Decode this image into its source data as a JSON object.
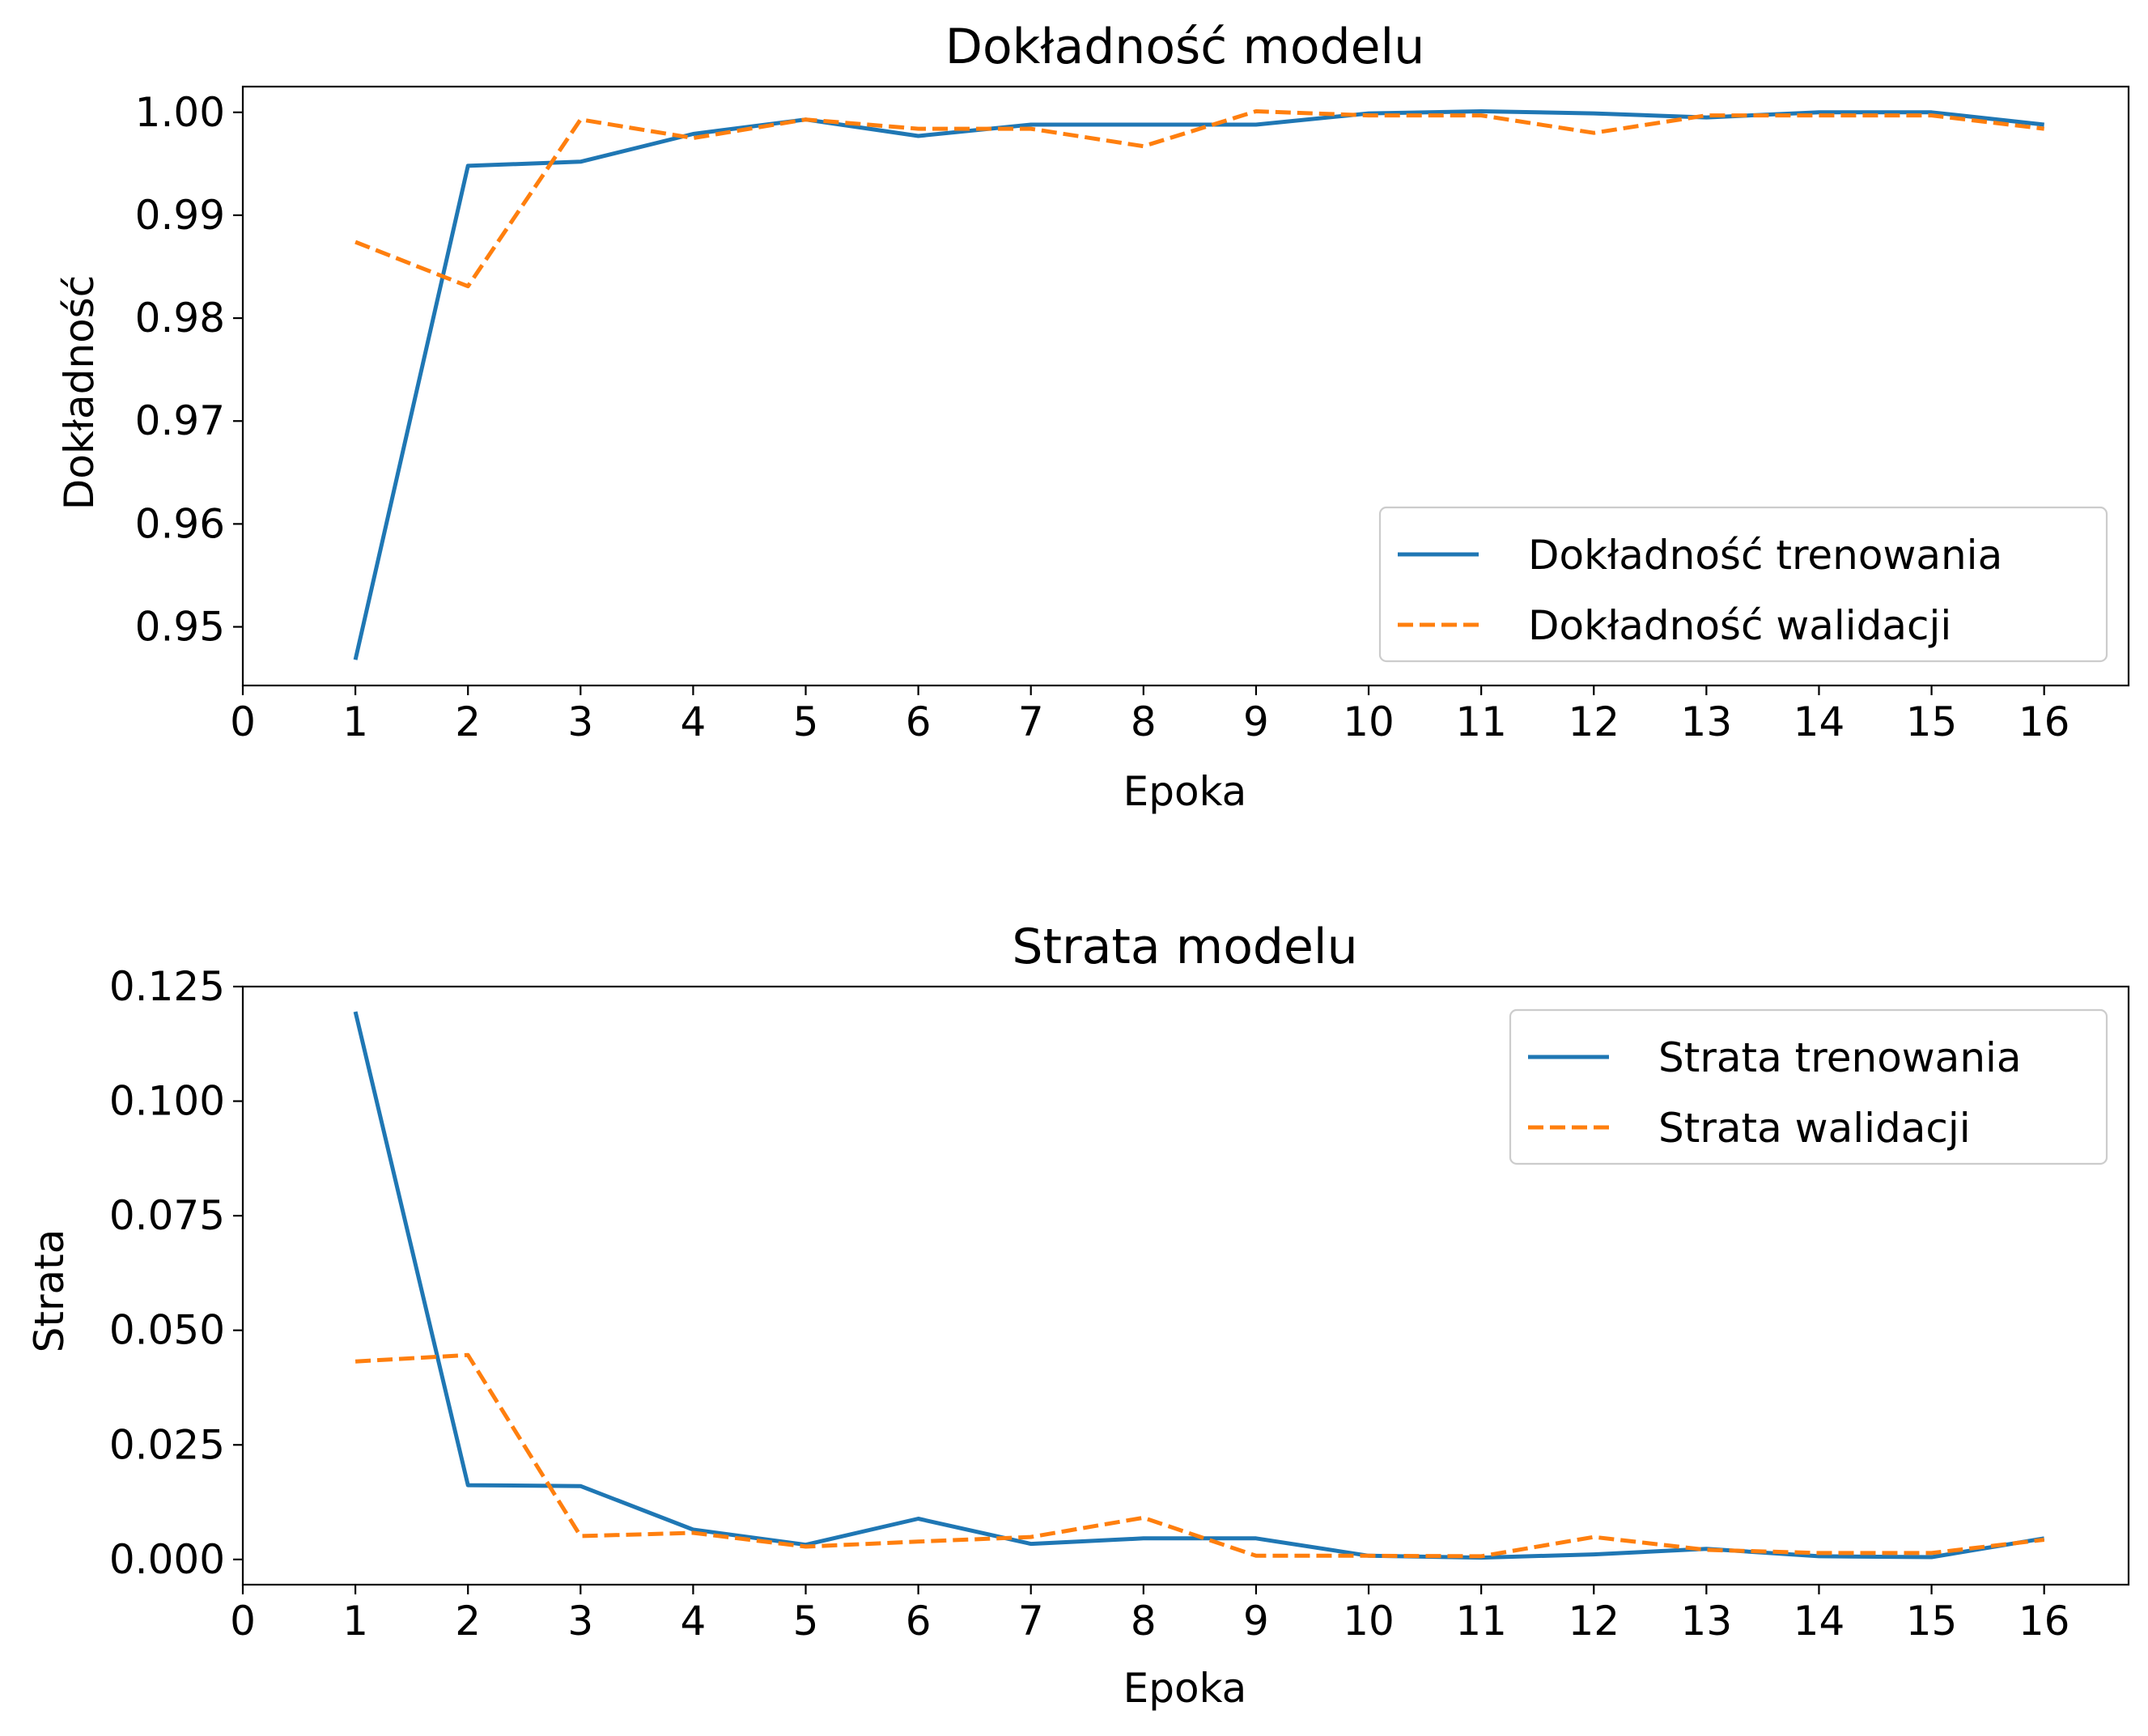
{
  "chart_data": [
    {
      "type": "line",
      "title": "Dokładność modelu",
      "xlabel": "Epoka",
      "ylabel": "Dokładność",
      "xlim": [
        0,
        16.75
      ],
      "ylim": [
        0.9443,
        1.0025
      ],
      "xticks": [
        0,
        1,
        2,
        3,
        4,
        5,
        6,
        7,
        8,
        9,
        10,
        11,
        12,
        13,
        14,
        15,
        16
      ],
      "xtick_labels": [
        "0",
        "1",
        "2",
        "3",
        "4",
        "5",
        "6",
        "7",
        "8",
        "9",
        "10",
        "11",
        "12",
        "13",
        "14",
        "15",
        "16"
      ],
      "yticks": [
        0.95,
        0.96,
        0.97,
        0.98,
        0.99,
        1.0
      ],
      "ytick_labels": [
        "0.95",
        "0.96",
        "0.97",
        "0.98",
        "0.99",
        "1.00"
      ],
      "grid": false,
      "legend_position": "lower right",
      "x": [
        1,
        2,
        3,
        4,
        5,
        6,
        7,
        8,
        9,
        10,
        11,
        12,
        13,
        14,
        15,
        16
      ],
      "series": [
        {
          "name": "Dokładność trenowania",
          "color": "#1f77b4",
          "dash": "solid",
          "values": [
            0.9468,
            0.9948,
            0.9952,
            0.9979,
            0.9993,
            0.9977,
            0.9988,
            0.9988,
            0.9988,
            0.9999,
            1.0001,
            0.9999,
            0.9995,
            1.0,
            1.0,
            0.9988
          ]
        },
        {
          "name": "Dokładność walidacji",
          "color": "#ff7f0e",
          "dash": "dashed",
          "values": [
            0.9874,
            0.9831,
            0.9993,
            0.9975,
            0.9993,
            0.9984,
            0.9984,
            0.9967,
            1.0001,
            0.9997,
            0.9997,
            0.998,
            0.9997,
            0.9997,
            0.9997,
            0.9984
          ]
        }
      ]
    },
    {
      "type": "line",
      "title": "Strata modelu",
      "xlabel": "Epoka",
      "ylabel": "Strata",
      "xlim": [
        0,
        16.75
      ],
      "ylim": [
        -0.0055,
        0.125
      ],
      "xticks": [
        0,
        1,
        2,
        3,
        4,
        5,
        6,
        7,
        8,
        9,
        10,
        11,
        12,
        13,
        14,
        15,
        16
      ],
      "xtick_labels": [
        "0",
        "1",
        "2",
        "3",
        "4",
        "5",
        "6",
        "7",
        "8",
        "9",
        "10",
        "11",
        "12",
        "13",
        "14",
        "15",
        "16"
      ],
      "yticks": [
        0.0,
        0.025,
        0.05,
        0.075,
        0.1,
        0.125
      ],
      "ytick_labels": [
        "0.000",
        "0.025",
        "0.050",
        "0.075",
        "0.100",
        "0.125"
      ],
      "grid": false,
      "legend_position": "upper right",
      "x": [
        1,
        2,
        3,
        4,
        5,
        6,
        7,
        8,
        9,
        10,
        11,
        12,
        13,
        14,
        15,
        16
      ],
      "series": [
        {
          "name": "Strata trenowania",
          "color": "#1f77b4",
          "dash": "solid",
          "values": [
            0.1195,
            0.0162,
            0.016,
            0.0065,
            0.0032,
            0.0089,
            0.0034,
            0.0046,
            0.0046,
            0.0008,
            0.0004,
            0.0011,
            0.0023,
            0.0007,
            0.0005,
            0.0046
          ]
        },
        {
          "name": "Strata walidacji",
          "color": "#ff7f0e",
          "dash": "dashed",
          "values": [
            0.0432,
            0.0446,
            0.0051,
            0.0058,
            0.0028,
            0.0039,
            0.0049,
            0.0091,
            0.0008,
            0.0008,
            0.0007,
            0.0049,
            0.0021,
            0.0014,
            0.0014,
            0.0043
          ]
        }
      ]
    }
  ]
}
